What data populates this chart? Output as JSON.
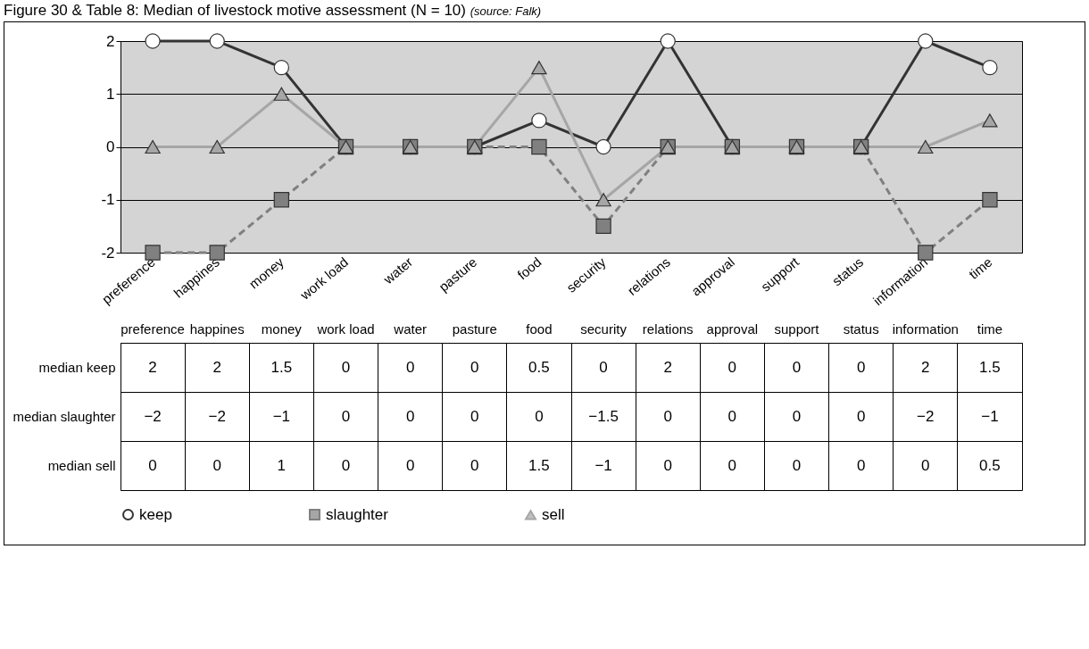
{
  "chart_data": {
    "type": "line",
    "title": "Figure 30 & Table 8: Median of livestock motive assessment (N = 10)",
    "annotations": [
      "(source: Falk)",
      "median"
    ],
    "categories": [
      "preference",
      "happines",
      "money",
      "work load",
      "water",
      "pasture",
      "food",
      "security",
      "relations",
      "approval",
      "support",
      "status",
      "information",
      "time"
    ],
    "series": [
      {
        "name": "keep",
        "color": "#333333",
        "marker": "circle",
        "line_style": "solid",
        "values": [
          2,
          2,
          1.5,
          0,
          0,
          0,
          0.5,
          0,
          2,
          0,
          0,
          0,
          2,
          1.5
        ]
      },
      {
        "name": "slaughter",
        "color": "#808080",
        "marker": "square",
        "line_style": "dashed",
        "values": [
          -2,
          -2,
          -1,
          0,
          0,
          0,
          0,
          -1.5,
          0,
          0,
          0,
          0,
          -2,
          -1
        ]
      },
      {
        "name": "sell",
        "color": "#a6a6a6",
        "marker": "triangle",
        "line_style": "solid",
        "values": [
          0,
          0,
          1,
          0,
          0,
          0,
          1.5,
          -1,
          0,
          0,
          0,
          0,
          0,
          0.5
        ]
      }
    ],
    "ylim": [
      -2,
      2
    ],
    "yticks": [
      -2,
      -1,
      0,
      1,
      2
    ],
    "grid": "y",
    "legend": "bottom",
    "data_labels": true
  }
}
